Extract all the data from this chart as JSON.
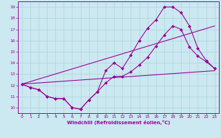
{
  "title": "",
  "xlabel": "Windchill (Refroidissement éolien,°C)",
  "ylabel": "",
  "bg_color": "#cce8f0",
  "line_color": "#990099",
  "xlim": [
    -0.5,
    23.5
  ],
  "ylim": [
    9.5,
    19.5
  ],
  "xticks": [
    0,
    1,
    2,
    3,
    4,
    5,
    6,
    7,
    8,
    9,
    10,
    11,
    12,
    13,
    14,
    15,
    16,
    17,
    18,
    19,
    20,
    21,
    22,
    23
  ],
  "yticks": [
    10,
    11,
    12,
    13,
    14,
    15,
    16,
    17,
    18,
    19
  ],
  "line1_x": [
    0,
    1,
    2,
    3,
    4,
    5,
    6,
    7,
    8,
    9,
    10,
    11,
    12,
    13,
    14,
    15,
    16,
    17,
    18,
    19,
    20,
    21,
    22,
    23
  ],
  "line1_y": [
    12.1,
    11.8,
    11.6,
    11.0,
    10.8,
    10.8,
    10.0,
    9.85,
    10.7,
    11.4,
    13.3,
    14.0,
    13.5,
    14.7,
    16.0,
    17.1,
    17.85,
    19.0,
    19.0,
    18.5,
    17.3,
    15.3,
    14.2,
    13.5
  ],
  "line2_x": [
    0,
    1,
    2,
    3,
    4,
    5,
    6,
    7,
    8,
    9,
    10,
    11,
    12,
    13,
    14,
    15,
    16,
    17,
    18,
    19,
    20,
    21,
    22,
    23
  ],
  "line2_y": [
    12.1,
    11.8,
    11.6,
    11.0,
    10.8,
    10.8,
    10.0,
    9.85,
    10.7,
    11.4,
    12.2,
    12.8,
    12.8,
    13.2,
    13.8,
    14.5,
    15.5,
    16.5,
    17.3,
    17.0,
    15.4,
    14.6,
    14.1,
    13.5
  ],
  "line3_x": [
    0,
    23
  ],
  "line3_y": [
    12.1,
    13.3
  ],
  "line4_x": [
    0,
    23
  ],
  "line4_y": [
    12.1,
    17.3
  ],
  "grid_color": "#aad4e0",
  "marker": "D",
  "markersize": 2.0,
  "linewidth": 0.8
}
